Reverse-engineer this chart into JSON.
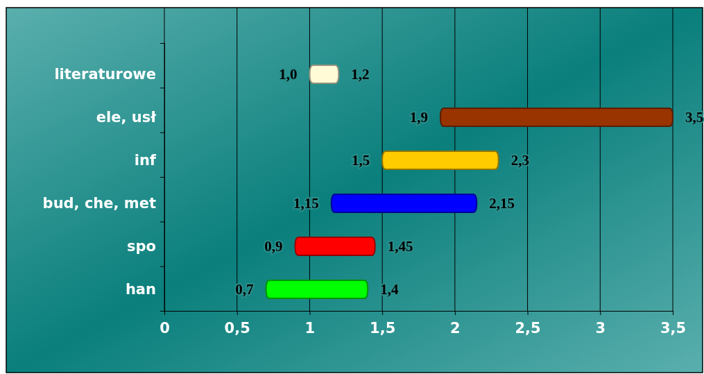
{
  "chart_data": {
    "type": "bar",
    "orientation": "horizontal",
    "categories": [
      "literaturowe",
      "ele, usł",
      "inf",
      "bud, che, met",
      "spo",
      "han"
    ],
    "base": [
      1.0,
      1.9,
      1.5,
      1.15,
      0.9,
      0.7
    ],
    "values": [
      0.2,
      1.6,
      0.8,
      1.0,
      0.55,
      0.7
    ],
    "colors": [
      "#fffbd6",
      "#993300",
      "#ffcc00",
      "#0000ff",
      "#ff0000",
      "#00ff00"
    ],
    "value_labels": [
      "1,2",
      "3,5",
      "2,3",
      "2,15",
      "1,45",
      "1,4"
    ],
    "annotations": [
      {
        "text": "1,0",
        "x": 1.0,
        "y": "literaturowe"
      },
      {
        "text": "1,9",
        "x": 1.9,
        "y": "ele, usł"
      },
      {
        "text": "1,5",
        "x": 1.5,
        "y": "inf"
      },
      {
        "text": "1,15",
        "x": 1.15,
        "y": "bud, che, met"
      },
      {
        "text": "0,9",
        "x": 0.9,
        "y": "spo"
      },
      {
        "text": "0,7",
        "x": 0.7,
        "y": "han"
      }
    ],
    "xlim": [
      0,
      3.5
    ],
    "xticks": [
      0,
      {
        "value": 0.5,
        "label": "0,5"
      },
      1,
      {
        "value": 1.5,
        "label": "1,5"
      },
      2,
      {
        "value": 2.5,
        "label": "2,5"
      },
      3,
      {
        "value": 3.5,
        "label": "3,5"
      }
    ],
    "grid": "x"
  }
}
